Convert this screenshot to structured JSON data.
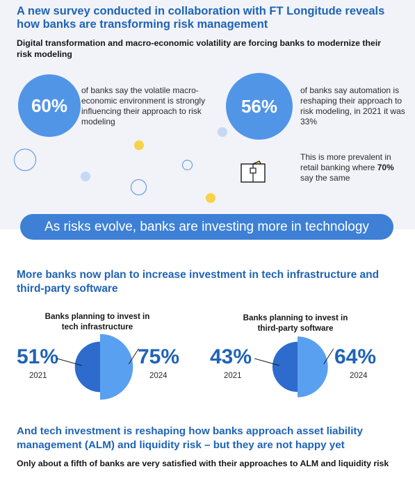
{
  "header": {
    "title": "A new survey conducted in collaboration with FT Longitude reveals how banks are transforming risk management",
    "subtitle": "Digital transformation and macro-economic volatility are forcing banks to modernize their risk modeling"
  },
  "stats": {
    "stat1": {
      "value": "60%",
      "text": "of banks say the volatile macro-economic environment is strongly influencing their approach to risk modeling"
    },
    "stat2": {
      "value": "56%",
      "text": "of banks say automation is reshaping their approach to risk modeling, in 2021 it was 33%"
    },
    "retail": {
      "text_before": "This is more prevalent in retail banking where ",
      "highlight": "70%",
      "text_after": " say the same"
    }
  },
  "banner": {
    "text": "As risks evolve, banks are investing more in technology"
  },
  "section2": {
    "title": "More banks now plan to increase investment in tech infrastructure and third-party software"
  },
  "chart_data": [
    {
      "type": "pie",
      "title": "Banks planning to invest in tech infrastructure",
      "categories": [
        "2021",
        "2024"
      ],
      "values": [
        51,
        75
      ],
      "value_labels": [
        "51%",
        "75%"
      ],
      "colors": [
        "#2d6bcd",
        "#5aa0f0"
      ]
    },
    {
      "type": "pie",
      "title": "Banks planning to invest in third-party software",
      "categories": [
        "2021",
        "2024"
      ],
      "values": [
        43,
        64
      ],
      "value_labels": [
        "43%",
        "64%"
      ],
      "colors": [
        "#2d6bcd",
        "#5aa0f0"
      ]
    }
  ],
  "section3": {
    "title": "And tech investment is reshaping how banks approach asset liability management (ALM) and liquidity risk – but they are not happy yet",
    "subtitle": "Only about a fifth of banks are very satisfied with their approaches to ALM and liquidity risk"
  },
  "icons": {
    "wallet": "wallet-with-card-icon"
  },
  "colors": {
    "heading_blue": "#1f63b6",
    "circle_blue": "#5195e7",
    "banner_blue": "#3d80d5",
    "dot_yellow": "#f6d348",
    "dot_light_blue": "#c6d8f6",
    "panel_bg": "#f1f3f8"
  }
}
